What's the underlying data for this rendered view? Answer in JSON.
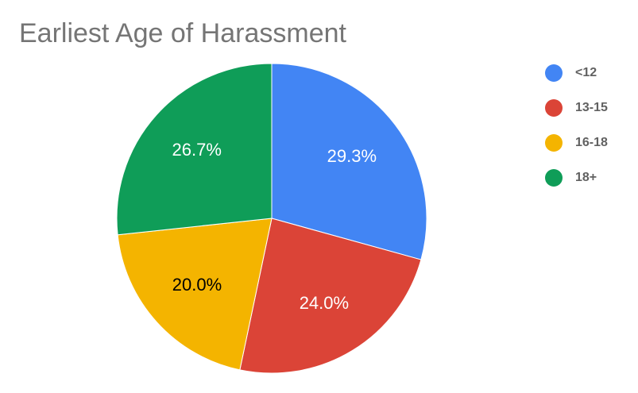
{
  "chart_data": {
    "type": "pie",
    "title": "Earliest Age of Harassment",
    "categories": [
      "<12",
      "13-15",
      "16-18",
      "18+"
    ],
    "values": [
      29.3,
      24.0,
      20.0,
      26.7
    ],
    "value_labels": [
      "29.3%",
      "24.0%",
      "20.0%",
      "26.7%"
    ],
    "colors": [
      "#4285f4",
      "#db4437",
      "#f4b400",
      "#0f9d58"
    ],
    "value_label_colors": [
      "#ffffff",
      "#ffffff",
      "#000000",
      "#ffffff"
    ],
    "legend": "right"
  }
}
